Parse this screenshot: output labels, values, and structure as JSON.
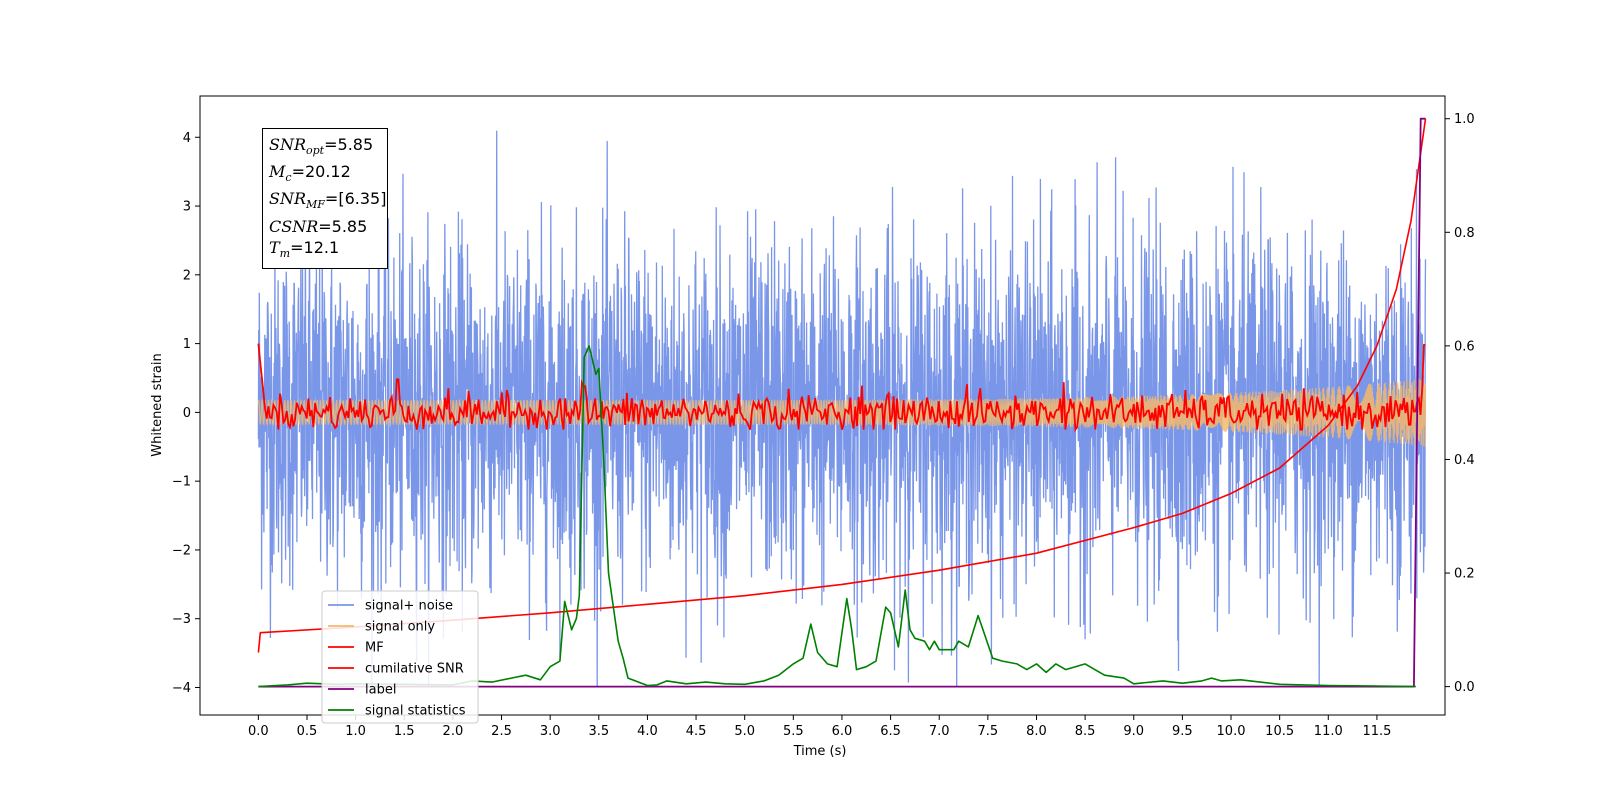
{
  "chart_data": {
    "type": "line",
    "xlabel": "Time (s)",
    "ylabel": "Whitened strain",
    "xlim": [
      -0.6,
      12.2
    ],
    "ylim": [
      -4.4,
      4.6
    ],
    "y2lim": [
      -0.05,
      1.04
    ],
    "grid": false,
    "legend_position": "lower-left",
    "x_ticks": [
      "0.0",
      "0.5",
      "1.0",
      "1.5",
      "2.0",
      "2.5",
      "3.0",
      "3.5",
      "4.0",
      "4.5",
      "5.0",
      "5.5",
      "6.0",
      "6.5",
      "7.0",
      "7.5",
      "8.0",
      "8.5",
      "9.0",
      "9.5",
      "10.0",
      "10.5",
      "11.0",
      "11.5"
    ],
    "y_ticks": [
      "4",
      "3",
      "2",
      "1",
      "0",
      "−1",
      "−2",
      "−3",
      "−4"
    ],
    "y2_ticks": [
      "1.0",
      "0.8",
      "0.6",
      "0.4",
      "0.2",
      "0.0"
    ],
    "info_box": {
      "snr_opt_sym": "SNR",
      "snr_opt_sub": "opt",
      "snr_opt_val": "=5.85",
      "mc_sym": "M",
      "mc_sub": "c",
      "mc_val": "=20.12",
      "snr_mf_sym": "SNR",
      "snr_mf_sub": "MF",
      "snr_mf_val": "=[6.35]",
      "csnr_sym": "CSNR",
      "csnr_val": "=5.85",
      "tm_sym": "T",
      "tm_sub": "m",
      "tm_val": "=12.1"
    },
    "series": [
      {
        "name": "signal+ noise",
        "color": "#7a96e8",
        "axis": "left",
        "style": "noise",
        "amplitude_sd": 1.25,
        "x_range": [
          0.0,
          12.0
        ],
        "peak_max": 4.15,
        "peak_min": -4.0
      },
      {
        "name": "signal only",
        "color": "#f5b86b",
        "axis": "left",
        "style": "chirp",
        "x_range": [
          0.0,
          12.0
        ],
        "amplitude_start": 0.18,
        "amplitude_end": 0.5
      },
      {
        "name": "MF",
        "color": "#ff0000",
        "axis": "left",
        "style": "mf",
        "x_range": [
          0.0,
          12.0
        ],
        "start_value": 1.0,
        "typical_range": [
          -0.25,
          0.35
        ],
        "peaks": [
          [
            1.43,
            0.48
          ],
          [
            3.32,
            0.43
          ],
          [
            3.35,
            0.38
          ],
          [
            6.2,
            0.39
          ],
          [
            7.28,
            0.41
          ],
          [
            8.28,
            0.44
          ],
          [
            11.99,
            0.98
          ]
        ]
      },
      {
        "name": "cumilative SNR",
        "color": "#ff0000",
        "axis": "right",
        "x": [
          0.0,
          0.02,
          1.0,
          2.0,
          3.0,
          4.0,
          5.0,
          6.0,
          7.0,
          8.0,
          9.0,
          9.5,
          10.0,
          10.5,
          11.0,
          11.3,
          11.5,
          11.7,
          11.85,
          11.95,
          12.0
        ],
        "values": [
          0.06,
          0.095,
          0.105,
          0.117,
          0.13,
          0.145,
          0.16,
          0.18,
          0.205,
          0.235,
          0.28,
          0.305,
          0.34,
          0.385,
          0.46,
          0.53,
          0.6,
          0.7,
          0.82,
          0.94,
          1.0
        ]
      },
      {
        "name": "label",
        "color": "#800080",
        "axis": "right",
        "x": [
          0.0,
          11.88,
          11.95,
          12.0
        ],
        "values": [
          0.0,
          0.0,
          1.0,
          1.0
        ]
      },
      {
        "name": "signal statistics",
        "color": "#008000",
        "axis": "right",
        "x": [
          0.0,
          0.3,
          0.5,
          0.8,
          1.0,
          1.5,
          2.0,
          2.2,
          2.4,
          2.6,
          2.75,
          2.9,
          3.0,
          3.1,
          3.15,
          3.22,
          3.27,
          3.3,
          3.35,
          3.4,
          3.47,
          3.5,
          3.55,
          3.6,
          3.7,
          3.75,
          3.8,
          4.0,
          4.1,
          4.2,
          4.4,
          4.6,
          4.8,
          5.0,
          5.2,
          5.35,
          5.5,
          5.6,
          5.68,
          5.75,
          5.85,
          5.95,
          6.05,
          6.1,
          6.15,
          6.25,
          6.35,
          6.45,
          6.5,
          6.58,
          6.65,
          6.7,
          6.75,
          6.85,
          6.9,
          6.95,
          7.0,
          7.05,
          7.15,
          7.2,
          7.3,
          7.4,
          7.45,
          7.55,
          7.65,
          7.8,
          7.9,
          8.0,
          8.1,
          8.2,
          8.3,
          8.5,
          8.6,
          8.7,
          8.9,
          9.0,
          9.3,
          9.5,
          9.7,
          9.8,
          9.9,
          10.1,
          10.5,
          11.0,
          11.5,
          11.9
        ],
        "values": [
          0.0,
          0.003,
          0.006,
          0.004,
          0.005,
          0.004,
          0.003,
          0.01,
          0.008,
          0.015,
          0.02,
          0.012,
          0.035,
          0.045,
          0.15,
          0.1,
          0.12,
          0.16,
          0.58,
          0.6,
          0.55,
          0.56,
          0.4,
          0.2,
          0.08,
          0.05,
          0.015,
          0.002,
          0.003,
          0.01,
          0.005,
          0.008,
          0.005,
          0.004,
          0.01,
          0.02,
          0.04,
          0.05,
          0.11,
          0.06,
          0.04,
          0.035,
          0.155,
          0.1,
          0.03,
          0.035,
          0.045,
          0.14,
          0.13,
          0.07,
          0.17,
          0.1,
          0.085,
          0.08,
          0.065,
          0.08,
          0.065,
          0.065,
          0.065,
          0.08,
          0.07,
          0.125,
          0.1,
          0.05,
          0.045,
          0.04,
          0.03,
          0.04,
          0.025,
          0.04,
          0.03,
          0.04,
          0.03,
          0.02,
          0.015,
          0.005,
          0.01,
          0.006,
          0.01,
          0.015,
          0.01,
          0.012,
          0.004,
          0.002,
          0.001,
          0.0
        ]
      }
    ]
  }
}
